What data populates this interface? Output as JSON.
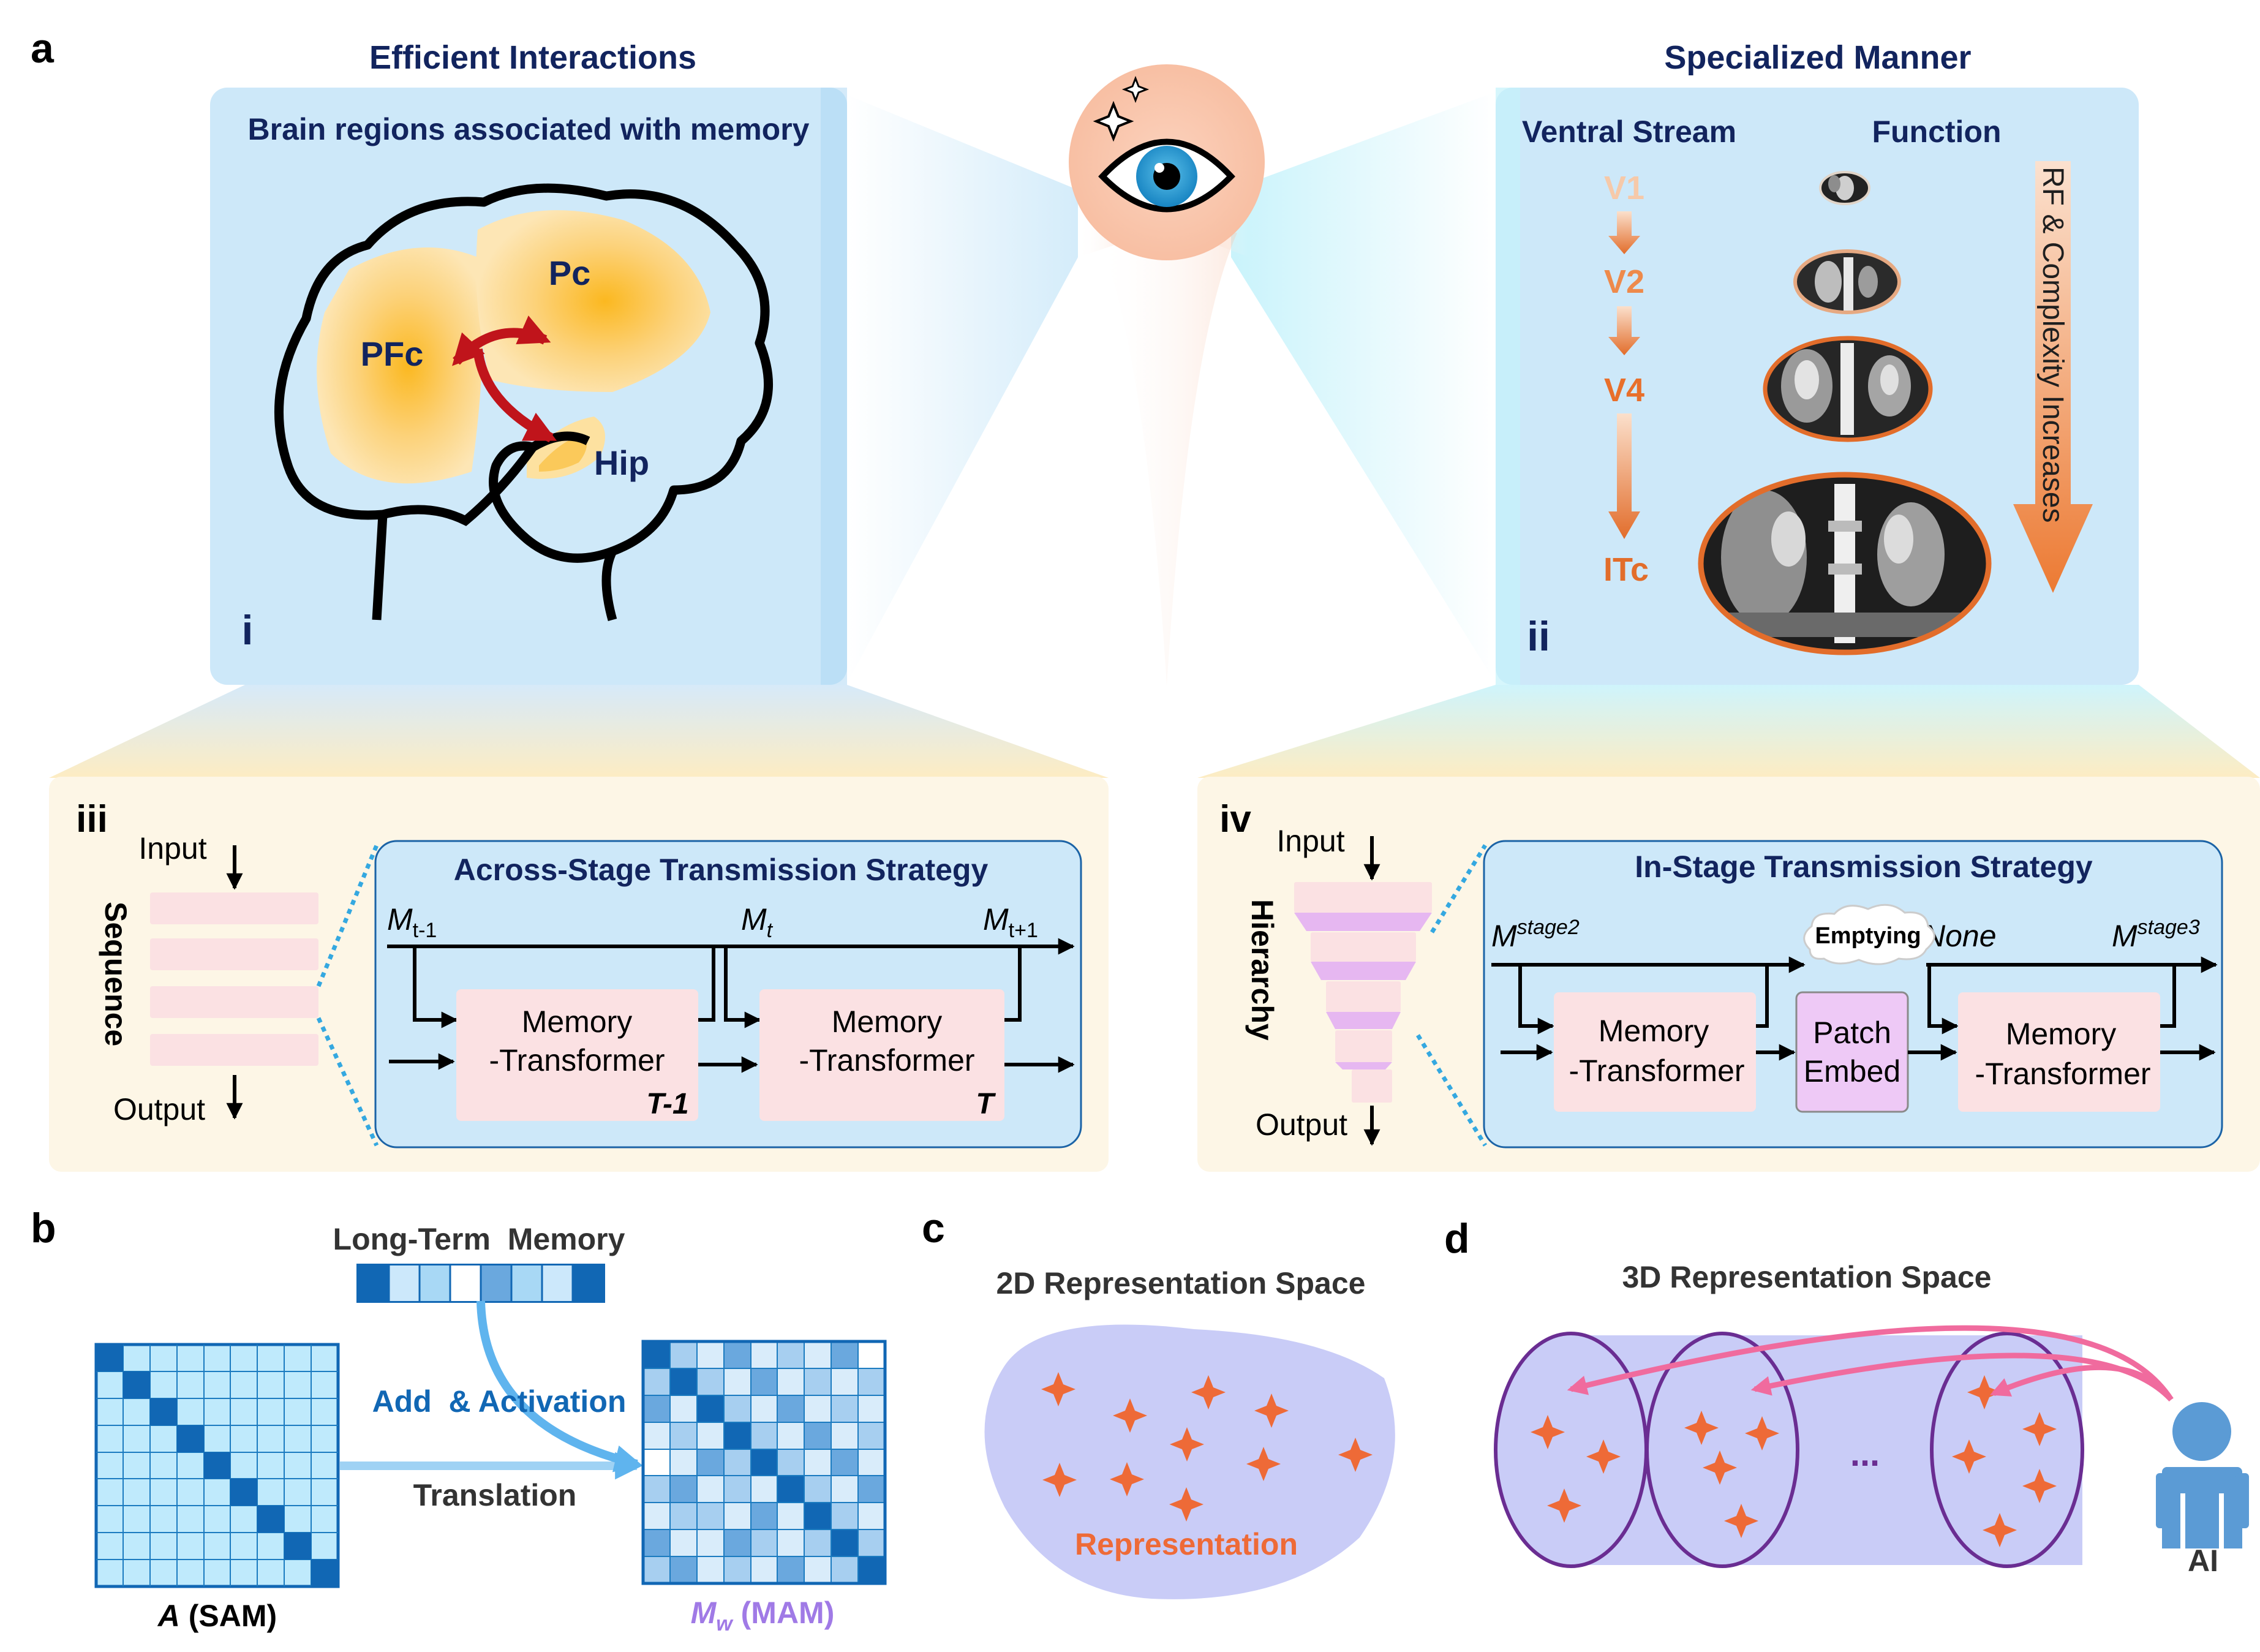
{
  "panels": {
    "a": "a",
    "b": "b",
    "c": "c",
    "d": "d",
    "i": "i",
    "ii": "ii",
    "iii": "iii",
    "iv": "iv"
  },
  "top_left": {
    "header": "Efficient Interactions",
    "title": "Brain regions associated with memory",
    "regions": {
      "pc": "Pc",
      "pfc": "PFc",
      "hip": "Hip"
    }
  },
  "top_right": {
    "header": "Specialized Manner",
    "col1": "Ventral Stream",
    "col2": "Function",
    "stages": [
      "V1",
      "V2",
      "V4",
      "ITc"
    ],
    "arrow_label": "RF & Complexity Increases"
  },
  "iii": {
    "input": "Input",
    "output": "Output",
    "side_label": "Sequence",
    "strategy": "Across-Stage Transmission Strategy",
    "m_prev": {
      "base": "M",
      "sub": "t-1"
    },
    "m_cur": {
      "base": "M",
      "sub": "t"
    },
    "m_next": {
      "base": "M",
      "sub": "t+1"
    },
    "block_line1": "Memory",
    "block_line2": "-Transformer",
    "block1_tag": "T-1",
    "block2_tag": "T"
  },
  "iv": {
    "input": "Input",
    "output": "Output",
    "side_label": "Hierarchy",
    "strategy": "In-Stage Transmission Strategy",
    "m_stage2": {
      "base": "M",
      "sup": "stage2"
    },
    "m_stage3": {
      "base": "M",
      "sup": "stage3"
    },
    "emptying": "Emptying",
    "none_label": "None",
    "block_line1": "Memory",
    "block_line2": "-Transformer",
    "patch_line1": "Patch",
    "patch_line2": "Embed"
  },
  "b": {
    "long_term": "Long-Term  Memory",
    "add_activation": "Add  & Activation",
    "translation": "Translation",
    "sam_label": {
      "italic": "A",
      "rest": " (SAM)"
    },
    "mam_label": {
      "italic": "M",
      "sub": "w",
      "rest": " (MAM)"
    }
  },
  "c": {
    "title": "2D Representation Space",
    "rep": "Representation"
  },
  "d": {
    "title": "3D Representation Space",
    "ellipsis": "...",
    "ai": "AI"
  },
  "colors": {
    "navy": "#12245e",
    "light_blue": "#cde8f9",
    "cream": "#fdf6e6",
    "pink_block": "#fbe1e3",
    "purple_block": "#eec9f6",
    "orange": "#e9733a",
    "sam_blue": "#1167b4",
    "mam_purple": "#a07ae6",
    "arrow_blue": "#5fb4ee",
    "red_arrow": "#c0141b",
    "magenta_arrow": "#f06b9e",
    "disk": "#c9ccf7"
  }
}
